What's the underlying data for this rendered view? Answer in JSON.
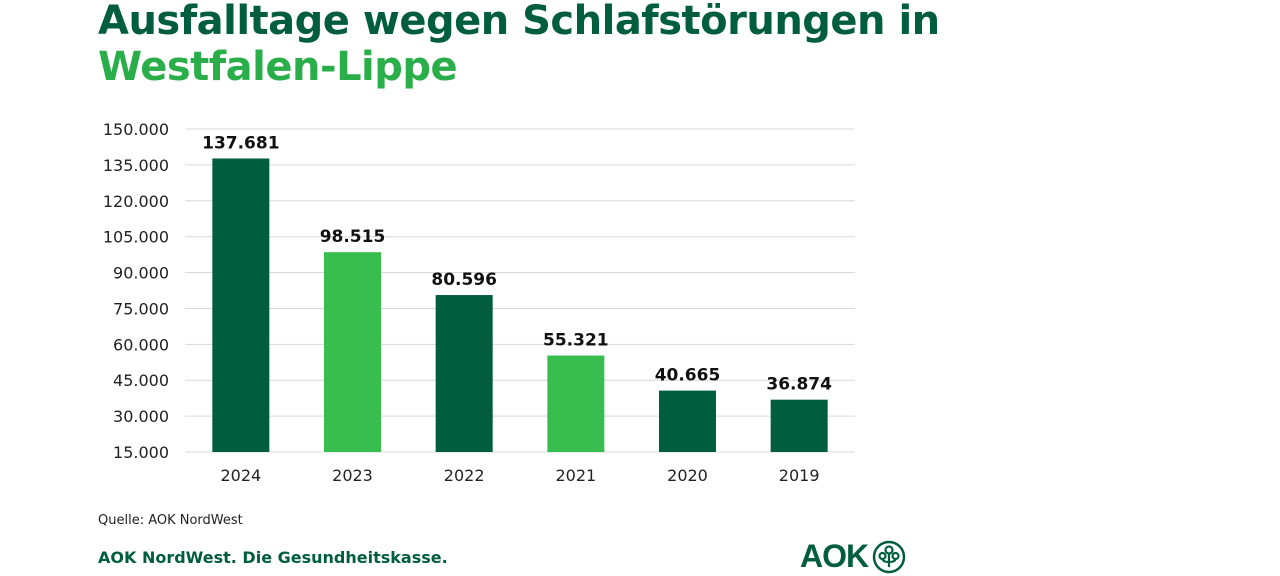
{
  "title_line1": "Ausfalltage wegen Schlafstörungen in",
  "title_line2": "Westfalen-Lippe",
  "source": "Quelle: AOK NordWest",
  "footer": "AOK NordWest. Die Gesundheitskasse.",
  "logo_text": "AOK",
  "chart_data": {
    "type": "bar",
    "categories": [
      "2024",
      "2023",
      "2022",
      "2021",
      "2020",
      "2019"
    ],
    "values": [
      137681,
      98515,
      80596,
      55321,
      40665,
      36874
    ],
    "data_labels": [
      "137.681",
      "98.515",
      "80.596",
      "55.321",
      "40.665",
      "36.874"
    ],
    "bar_colors": [
      "#005e3f",
      "#38bd4f",
      "#005e3f",
      "#38bd4f",
      "#005e3f",
      "#005e3f"
    ],
    "ylim": [
      15000,
      150000
    ],
    "yticks": [
      150000,
      135000,
      120000,
      105000,
      90000,
      75000,
      60000,
      45000,
      30000,
      15000
    ],
    "ytick_labels": [
      "150.000",
      "135.000",
      "120.000",
      "105.000",
      "90.000",
      "75.000",
      "60.000",
      "45.000",
      "30.000",
      "15.000"
    ],
    "grid": true,
    "xlabel": "",
    "ylabel": ""
  }
}
